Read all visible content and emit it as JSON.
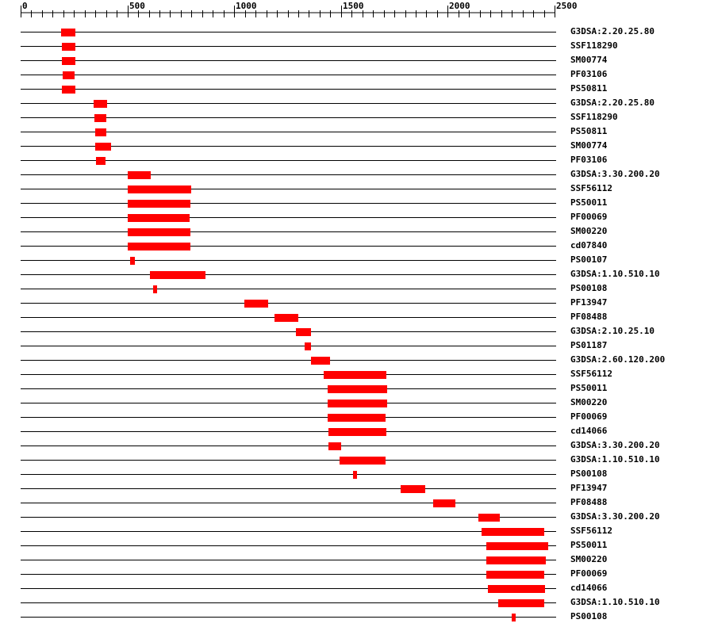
{
  "ruler": {
    "min": 0,
    "max": 2500,
    "major_ticks": [
      "0",
      "500",
      "1000",
      "1500",
      "2000",
      "2500"
    ],
    "major_step": 500,
    "minor_step": 50
  },
  "colors": {
    "domain": "#ff0000",
    "line": "#000000"
  },
  "tracks": [
    {
      "label": "G3DSA:2.20.25.80",
      "start": 190,
      "end": 258
    },
    {
      "label": "SSF118290",
      "start": 195,
      "end": 256
    },
    {
      "label": "SM00774",
      "start": 195,
      "end": 257
    },
    {
      "label": "PF03106",
      "start": 196,
      "end": 253
    },
    {
      "label": "PS50811",
      "start": 194,
      "end": 258
    },
    {
      "label": "G3DSA:2.20.25.80",
      "start": 340,
      "end": 404
    },
    {
      "label": "SSF118290",
      "start": 344,
      "end": 400
    },
    {
      "label": "PS50811",
      "start": 348,
      "end": 403
    },
    {
      "label": "SM00774",
      "start": 348,
      "end": 423
    },
    {
      "label": "PF03106",
      "start": 352,
      "end": 396
    },
    {
      "label": "G3DSA:3.30.200.20",
      "start": 500,
      "end": 610
    },
    {
      "label": "SSF56112",
      "start": 500,
      "end": 797
    },
    {
      "label": "PS50011",
      "start": 502,
      "end": 794
    },
    {
      "label": "PF00069",
      "start": 503,
      "end": 791
    },
    {
      "label": "SM00220",
      "start": 502,
      "end": 794
    },
    {
      "label": "cd07840",
      "start": 503,
      "end": 794
    },
    {
      "label": "PS00107",
      "start": 511,
      "end": 535
    },
    {
      "label": "G3DSA:1.10.510.10",
      "start": 605,
      "end": 865
    },
    {
      "label": "PS00108",
      "start": 622,
      "end": 640
    },
    {
      "label": "PF13947",
      "start": 1046,
      "end": 1158
    },
    {
      "label": "PF08488",
      "start": 1190,
      "end": 1302
    },
    {
      "label": "G3DSA:2.10.25.10",
      "start": 1290,
      "end": 1360
    },
    {
      "label": "PS01187",
      "start": 1330,
      "end": 1358
    },
    {
      "label": "G3DSA:2.60.120.200",
      "start": 1360,
      "end": 1450
    },
    {
      "label": "SSF56112",
      "start": 1420,
      "end": 1712
    },
    {
      "label": "PS50011",
      "start": 1437,
      "end": 1718
    },
    {
      "label": "SM00220",
      "start": 1437,
      "end": 1718
    },
    {
      "label": "PF00069",
      "start": 1437,
      "end": 1707
    },
    {
      "label": "cd14066",
      "start": 1440,
      "end": 1714
    },
    {
      "label": "G3DSA:3.30.200.20",
      "start": 1440,
      "end": 1500
    },
    {
      "label": "G3DSA:1.10.510.10",
      "start": 1495,
      "end": 1708
    },
    {
      "label": "PS00108",
      "start": 1556,
      "end": 1574
    },
    {
      "label": "PF13947",
      "start": 1780,
      "end": 1895
    },
    {
      "label": "PF08488",
      "start": 1930,
      "end": 2037
    },
    {
      "label": "G3DSA:3.30.200.20",
      "start": 2145,
      "end": 2245
    },
    {
      "label": "SSF56112",
      "start": 2160,
      "end": 2453
    },
    {
      "label": "PS50011",
      "start": 2180,
      "end": 2470
    },
    {
      "label": "SM00220",
      "start": 2180,
      "end": 2458
    },
    {
      "label": "PF00069",
      "start": 2180,
      "end": 2450
    },
    {
      "label": "cd14066",
      "start": 2187,
      "end": 2455
    },
    {
      "label": "G3DSA:1.10.510.10",
      "start": 2236,
      "end": 2453
    },
    {
      "label": "PS00108",
      "start": 2300,
      "end": 2318
    }
  ]
}
